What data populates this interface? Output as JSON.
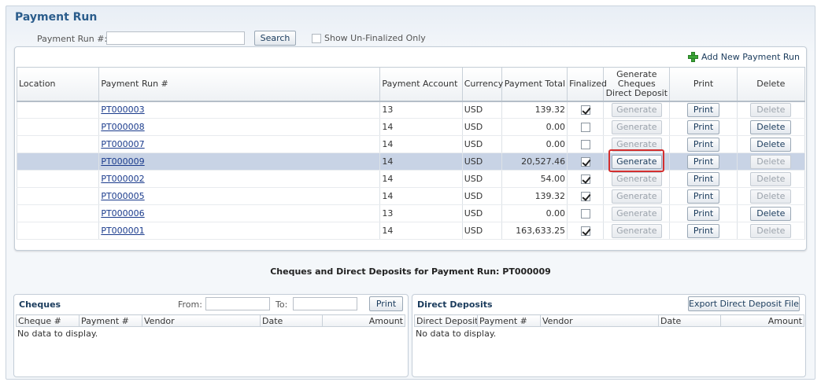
{
  "page": {
    "title": "Payment Run"
  },
  "search": {
    "label": "Payment Run #:",
    "value": "",
    "button": "Search",
    "unfinalized_label": "Show Un-Finalized Only",
    "unfinalized_checked": false
  },
  "toolbar": {
    "add_label": "Add New Payment Run"
  },
  "table": {
    "headers": {
      "location": "Location",
      "run": "Payment Run #",
      "account": "Payment Account",
      "currency": "Currency",
      "total": "Payment Total",
      "finalized": "Finalized",
      "generate": "Generate Cheques Direct Deposit",
      "print": "Print",
      "delete": "Delete"
    },
    "rows": [
      {
        "location": "",
        "run": "PT000003",
        "account": "13",
        "currency": "USD",
        "total": "139.32",
        "finalized": true,
        "generate": "Generate",
        "print": "Print",
        "delete": "Delete",
        "generate_enabled": false,
        "delete_enabled": false,
        "selected": false
      },
      {
        "location": "",
        "run": "PT000008",
        "account": "14",
        "currency": "USD",
        "total": "0.00",
        "finalized": false,
        "generate": "Generate",
        "print": "Print",
        "delete": "Delete",
        "generate_enabled": false,
        "delete_enabled": true,
        "selected": false
      },
      {
        "location": "",
        "run": "PT000007",
        "account": "14",
        "currency": "USD",
        "total": "0.00",
        "finalized": false,
        "generate": "Generate",
        "print": "Print",
        "delete": "Delete",
        "generate_enabled": false,
        "delete_enabled": true,
        "selected": false
      },
      {
        "location": "",
        "run": "PT000009",
        "account": "14",
        "currency": "USD",
        "total": "20,527.46",
        "finalized": true,
        "generate": "Generate",
        "print": "Print",
        "delete": "Delete",
        "generate_enabled": true,
        "delete_enabled": false,
        "selected": true
      },
      {
        "location": "",
        "run": "PT000002",
        "account": "14",
        "currency": "USD",
        "total": "54.00",
        "finalized": true,
        "generate": "Generate",
        "print": "Print",
        "delete": "Delete",
        "generate_enabled": false,
        "delete_enabled": false,
        "selected": false
      },
      {
        "location": "",
        "run": "PT000005",
        "account": "14",
        "currency": "USD",
        "total": "139.32",
        "finalized": true,
        "generate": "Generate",
        "print": "Print",
        "delete": "Delete",
        "generate_enabled": false,
        "delete_enabled": false,
        "selected": false
      },
      {
        "location": "",
        "run": "PT000006",
        "account": "13",
        "currency": "USD",
        "total": "0.00",
        "finalized": false,
        "generate": "Generate",
        "print": "Print",
        "delete": "Delete",
        "generate_enabled": false,
        "delete_enabled": true,
        "selected": false
      },
      {
        "location": "",
        "run": "PT000001",
        "account": "14",
        "currency": "USD",
        "total": "163,633.25",
        "finalized": true,
        "generate": "Generate",
        "print": "Print",
        "delete": "Delete",
        "generate_enabled": false,
        "delete_enabled": false,
        "selected": false
      }
    ]
  },
  "detail": {
    "title": "Cheques and Direct Deposits for Payment Run: PT000009"
  },
  "cheques": {
    "title": "Cheques",
    "from_label": "From:",
    "to_label": "To:",
    "from_value": "",
    "to_value": "",
    "print": "Print",
    "columns": [
      "Cheque #",
      "Payment #",
      "Vendor",
      "Date",
      "Amount"
    ],
    "empty": "No data to display."
  },
  "deposits": {
    "title": "Direct Deposits",
    "export": "Export Direct Deposit File",
    "columns": [
      "Direct Deposit",
      "Payment #",
      "Vendor",
      "Date",
      "Amount"
    ],
    "empty": "No data to display."
  },
  "icons": {
    "add": "plus-icon",
    "checkbox": "checkbox-icon"
  },
  "colors": {
    "accent": "#2b5d8c",
    "selected_row": "#c8d3e5",
    "highlight": "#d32f2f",
    "add_icon": "#3aa536"
  }
}
